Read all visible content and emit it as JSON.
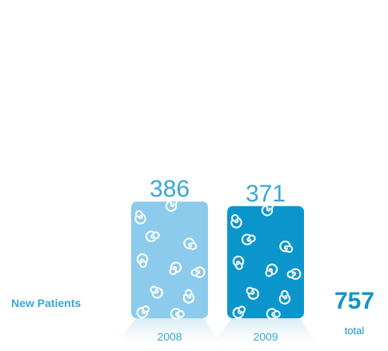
{
  "chart_data": {
    "type": "bar",
    "categories": [
      "2008",
      "2009"
    ],
    "values": [
      386,
      371
    ],
    "row_label": "New Patients",
    "total": {
      "value": "757",
      "label": "total"
    },
    "colors": [
      "#8ccbec",
      "#0a96cc"
    ],
    "label_color": "#3aa6d8",
    "pattern": "swirl-icon"
  }
}
